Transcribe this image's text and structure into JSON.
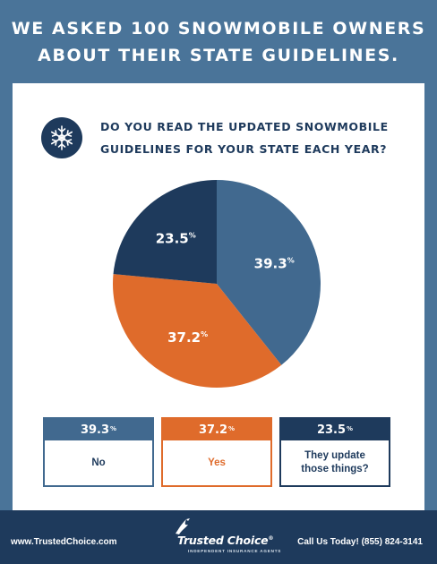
{
  "header": {
    "line1": "WE ASKED 100 SNOWMOBILE OWNERS",
    "line2": "ABOUT THEIR STATE GUIDELINES."
  },
  "question": {
    "icon": "snowflake-icon",
    "line1": "DO YOU READ THE UPDATED SNOWMOBILE",
    "line2": "GUIDELINES FOR YOUR STATE EACH YEAR?"
  },
  "chart_data": {
    "type": "pie",
    "categories": [
      "No",
      "Yes",
      "They update those things?"
    ],
    "values": [
      39.3,
      37.2,
      23.5
    ],
    "colors": [
      "#41698f",
      "#df6b2b",
      "#1e3a5c"
    ],
    "start": "12 o'clock",
    "direction": "clockwise"
  },
  "slice_labels": [
    {
      "value": "39.3",
      "unit": "%"
    },
    {
      "value": "37.2",
      "unit": "%"
    },
    {
      "value": "23.5",
      "unit": "%"
    }
  ],
  "legend": [
    {
      "value": "39.3",
      "unit": "%",
      "label": "No",
      "color": "#41698f"
    },
    {
      "value": "37.2",
      "unit": "%",
      "label": "Yes",
      "color": "#df6b2b"
    },
    {
      "value": "23.5",
      "unit": "%",
      "label": "They update\nthose things?",
      "color": "#1e3a5c"
    }
  ],
  "footer": {
    "website": "www.TrustedChoice.com",
    "logo_name": "Trusted Choice",
    "logo_mark": "®",
    "logo_tagline": "INDEPENDENT INSURANCE AGENTS",
    "phone": "Call Us Today! (855) 824-3141"
  },
  "colors": {
    "background": "#4a7499",
    "navy": "#1e3a5c",
    "orange": "#df6b2b",
    "blue": "#41698f"
  }
}
